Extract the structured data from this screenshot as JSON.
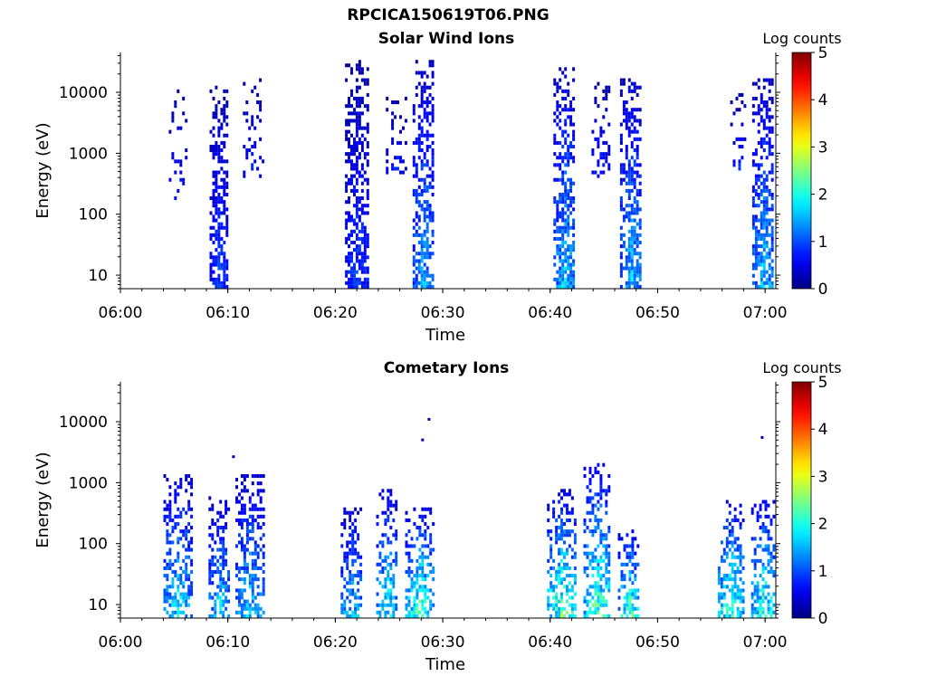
{
  "figure": {
    "title": "RPCICA150619T06.PNG"
  },
  "chart_data": [
    {
      "type": "heatmap",
      "title": "Solar Wind Ions",
      "xlabel": "Time",
      "ylabel": "Energy (eV)",
      "x_range": [
        "06:00",
        "07:01"
      ],
      "x_ticks": [
        "06:00",
        "06:10",
        "06:20",
        "06:30",
        "06:40",
        "06:50",
        "07:00"
      ],
      "y_scale": "log",
      "ylim": [
        6,
        45000
      ],
      "y_ticks": [
        10,
        100,
        1000,
        10000
      ],
      "y_tick_labels": [
        "10",
        "100",
        "1000",
        "10000"
      ],
      "colorbar": {
        "label": "Log counts",
        "range": [
          0,
          5
        ],
        "ticks": [
          "0",
          "1",
          "2",
          "3",
          "4",
          "5"
        ],
        "colormap": "jet"
      },
      "grid": false,
      "bursts": [
        {
          "time_min": 5.3,
          "width_min": 1.6,
          "emin": 140,
          "emax": 13000,
          "peak_log": 1,
          "density": 0.3
        },
        {
          "time_min": 9.1,
          "width_min": 1.6,
          "emin": 6,
          "emax": 12000,
          "peak_log": 1.2,
          "density": 0.85
        },
        {
          "time_min": 12.3,
          "width_min": 1.8,
          "emin": 350,
          "emax": 15000,
          "peak_log": 1,
          "density": 0.35
        },
        {
          "time_min": 22.0,
          "width_min": 2.2,
          "emin": 6,
          "emax": 30000,
          "peak_log": 1.2,
          "density": 0.85
        },
        {
          "time_min": 25.6,
          "width_min": 1.8,
          "emin": 400,
          "emax": 9000,
          "peak_log": 1,
          "density": 0.35
        },
        {
          "time_min": 28.2,
          "width_min": 2.0,
          "emin": 6,
          "emax": 32000,
          "peak_log": 1.8,
          "density": 0.85
        },
        {
          "time_min": 41.3,
          "width_min": 2.0,
          "emin": 6,
          "emax": 25000,
          "peak_log": 2.0,
          "density": 0.85
        },
        {
          "time_min": 44.5,
          "width_min": 1.8,
          "emin": 350,
          "emax": 14000,
          "peak_log": 1,
          "density": 0.35
        },
        {
          "time_min": 47.5,
          "width_min": 2.0,
          "emin": 6,
          "emax": 15000,
          "peak_log": 2.0,
          "density": 0.85
        },
        {
          "time_min": 57.5,
          "width_min": 1.5,
          "emin": 500,
          "emax": 9000,
          "peak_log": 1,
          "density": 0.3
        },
        {
          "time_min": 59.8,
          "width_min": 2.0,
          "emin": 6,
          "emax": 15000,
          "peak_log": 2.0,
          "density": 0.85
        }
      ]
    },
    {
      "type": "heatmap",
      "title": "Cometary Ions",
      "xlabel": "Time",
      "ylabel": "Energy (eV)",
      "x_range": [
        "06:00",
        "07:01"
      ],
      "x_ticks": [
        "06:00",
        "06:10",
        "06:20",
        "06:30",
        "06:40",
        "06:50",
        "07:00"
      ],
      "y_scale": "log",
      "ylim": [
        6,
        45000
      ],
      "y_ticks": [
        10,
        100,
        1000,
        10000
      ],
      "y_tick_labels": [
        "10",
        "100",
        "1000",
        "10000"
      ],
      "colorbar": {
        "label": "Log counts",
        "range": [
          0,
          5
        ],
        "ticks": [
          "0",
          "1",
          "2",
          "3",
          "4",
          "5"
        ],
        "colormap": "jet"
      },
      "grid": false,
      "bursts": [
        {
          "time_min": 5.3,
          "width_min": 2.6,
          "emin": 6,
          "emax": 1300,
          "peak_log": 2.3,
          "density": 0.7
        },
        {
          "time_min": 9.2,
          "width_min": 2.0,
          "emin": 6,
          "emax": 550,
          "peak_log": 2.1,
          "density": 0.7
        },
        {
          "time_min": 12.0,
          "width_min": 2.6,
          "emin": 6,
          "emax": 1200,
          "peak_log": 2.2,
          "density": 0.7
        },
        {
          "time_min": 21.5,
          "width_min": 2.0,
          "emin": 6,
          "emax": 400,
          "peak_log": 2.1,
          "density": 0.7
        },
        {
          "time_min": 24.8,
          "width_min": 2.0,
          "emin": 6,
          "emax": 700,
          "peak_log": 2.4,
          "density": 0.7
        },
        {
          "time_min": 27.8,
          "width_min": 2.6,
          "emin": 6,
          "emax": 350,
          "peak_log": 2.9,
          "density": 0.75
        },
        {
          "time_min": 41.0,
          "width_min": 2.6,
          "emin": 6,
          "emax": 700,
          "peak_log": 3.0,
          "density": 0.7
        },
        {
          "time_min": 44.3,
          "width_min": 2.4,
          "emin": 6,
          "emax": 2000,
          "peak_log": 2.9,
          "density": 0.7
        },
        {
          "time_min": 47.3,
          "width_min": 2.0,
          "emin": 6,
          "emax": 150,
          "peak_log": 2.9,
          "density": 0.75
        },
        {
          "time_min": 56.8,
          "width_min": 2.4,
          "emin": 6,
          "emax": 500,
          "peak_log": 2.8,
          "density": 0.7
        },
        {
          "time_min": 59.8,
          "width_min": 2.2,
          "emin": 6,
          "emax": 500,
          "peak_log": 2.8,
          "density": 0.7
        }
      ],
      "outliers": [
        {
          "time_min": 10.4,
          "energy": 2800
        },
        {
          "time_min": 28.6,
          "energy": 11500
        },
        {
          "time_min": 28.0,
          "energy": 5300
        },
        {
          "time_min": 59.6,
          "energy": 5800
        }
      ]
    }
  ]
}
